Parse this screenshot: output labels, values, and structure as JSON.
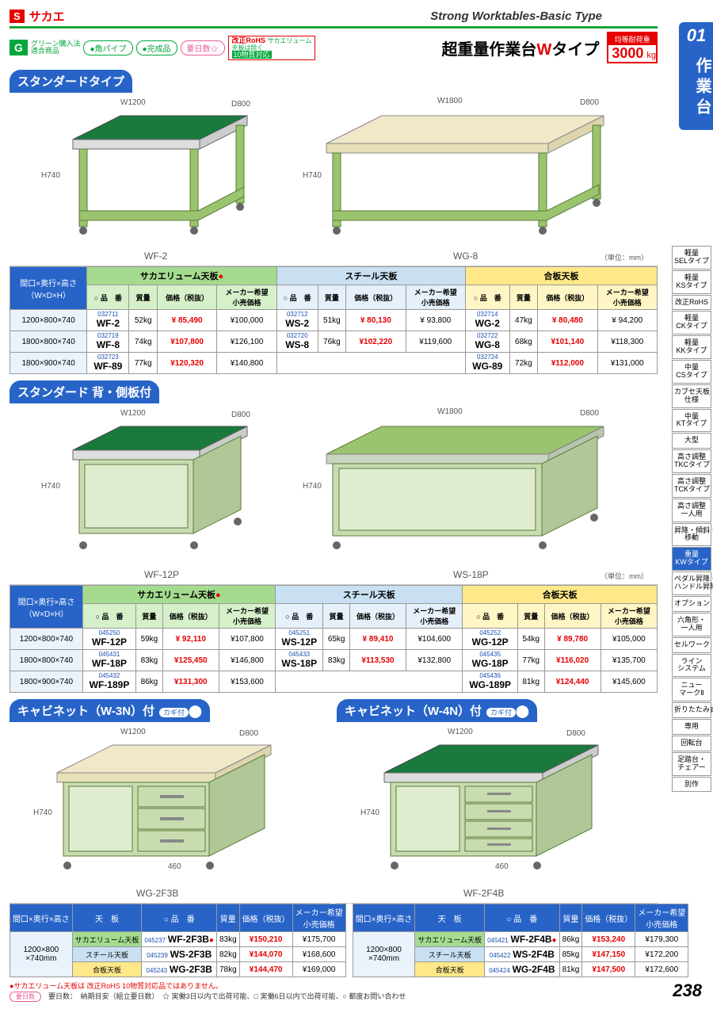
{
  "logo": {
    "s": "S",
    "name": "サカエ"
  },
  "subtitle": "Strong Worktables-Basic Type",
  "badges": {
    "g": "G",
    "g_txt": "グリーン購入法\n適合商品",
    "p1": "角パイプ",
    "p2": "完成品",
    "p3": "要日数",
    "star": "☆"
  },
  "rohs": {
    "main": "改正RoHS",
    "sub": "10物質対応",
    "note": "サカエリューム\n天板は除く"
  },
  "main_title": {
    "a": "超重量作業台",
    "w": "W",
    "b": "タイプ"
  },
  "load": {
    "label": "均等耐荷重",
    "num": "3000",
    "unit": "kg"
  },
  "tab": {
    "num": "01",
    "txt": "作業台"
  },
  "side_list": [
    "軽量\nSELタイプ",
    "軽量\nKSタイプ",
    "改正RoHS",
    "軽量\nCKタイプ",
    "軽量\nKKタイプ",
    "中量\nCSタイプ",
    "カブセ天板\n仕様",
    "中量\nKTタイプ",
    "大型",
    "高さ調整\nTKCタイプ",
    "高さ調整\nTCKタイプ",
    "高さ調整\n一人用",
    "昇降・傾斜・\n移動",
    "重量\nKWタイプ",
    "ペダル昇降・\nハンドル昇降",
    "オプション",
    "六角形・\n一人用",
    "セルワーク",
    "ライン\nシステム",
    "ニュー\nマークⅡ",
    "折りたたみ式",
    "専用",
    "回転台",
    "足踏台・\nチェアー",
    "別作"
  ],
  "side_active_idx": 13,
  "section1": {
    "title": "スタンダードタイプ",
    "imgs": {
      "left": {
        "label": "WF-2",
        "w": "W1200",
        "d": "D800",
        "h": "H740"
      },
      "right": {
        "label": "WG-8",
        "w": "W1800",
        "d": "D800",
        "h": "H740"
      }
    },
    "unit": "（単位：mm）",
    "headers": {
      "dim": "間口×奥行×高さ\n（W×D×H）",
      "g1": "サカエリューム天板",
      "g2": "スチール天板",
      "g3": "合板天板",
      "sub": [
        "○ 品　番",
        "質量",
        "価格（税抜）",
        "メーカー希望\n小売価格"
      ]
    },
    "rows": [
      {
        "dim": "1200×800×740",
        "c1": "032711",
        "m1": "WF-2",
        "w1": "52kg",
        "p1": "¥ 85,490",
        "l1": "¥100,000",
        "c2": "032712",
        "m2": "WS-2",
        "w2": "51kg",
        "p2": "¥ 80,130",
        "l2": "¥ 93,800",
        "c3": "032714",
        "m3": "WG-2",
        "w3": "47kg",
        "p3": "¥ 80,480",
        "l3": "¥ 94,200"
      },
      {
        "dim": "1800×800×740",
        "c1": "032719",
        "m1": "WF-8",
        "w1": "74kg",
        "p1": "¥107,800",
        "l1": "¥126,100",
        "c2": "032720",
        "m2": "WS-8",
        "w2": "76kg",
        "p2": "¥102,220",
        "l2": "¥119,600",
        "c3": "032722",
        "m3": "WG-8",
        "w3": "68kg",
        "p3": "¥101,140",
        "l3": "¥118,300"
      },
      {
        "dim": "1800×900×740",
        "c1": "032723",
        "m1": "WF-89",
        "w1": "77kg",
        "p1": "¥120,320",
        "l1": "¥140,800",
        "c2": "",
        "m2": "",
        "w2": "",
        "p2": "",
        "l2": "",
        "c3": "032724",
        "m3": "WG-89",
        "w3": "72kg",
        "p3": "¥112,000",
        "l3": "¥131,000"
      }
    ]
  },
  "section2": {
    "title": "スタンダード 背・側板付",
    "imgs": {
      "left": {
        "label": "WF-12P",
        "w": "W1200",
        "d": "D800",
        "h": "H740"
      },
      "right": {
        "label": "WS-18P",
        "w": "W1800",
        "d": "D800",
        "h": "H740"
      }
    },
    "unit": "（単位：mm）",
    "rows": [
      {
        "dim": "1200×800×740",
        "c1": "045250",
        "m1": "WF-12P",
        "w1": "59kg",
        "p1": "¥ 92,110",
        "l1": "¥107,800",
        "c2": "045251",
        "m2": "WS-12P",
        "w2": "65kg",
        "p2": "¥ 89,410",
        "l2": "¥104,600",
        "c3": "045252",
        "m3": "WG-12P",
        "w3": "54kg",
        "p3": "¥ 89,780",
        "l3": "¥105,000"
      },
      {
        "dim": "1800×800×740",
        "c1": "045431",
        "m1": "WF-18P",
        "w1": "83kg",
        "p1": "¥125,450",
        "l1": "¥146,800",
        "c2": "045433",
        "m2": "WS-18P",
        "w2": "83kg",
        "p2": "¥113,530",
        "l2": "¥132,800",
        "c3": "045435",
        "m3": "WG-18P",
        "w3": "77kg",
        "p3": "¥116,020",
        "l3": "¥135,700"
      },
      {
        "dim": "1800×900×740",
        "c1": "045432",
        "m1": "WF-189P",
        "w1": "86kg",
        "p1": "¥131,300",
        "l1": "¥153,600",
        "c2": "",
        "m2": "",
        "w2": "",
        "p2": "",
        "l2": "",
        "c3": "045436",
        "m3": "WG-189P",
        "w3": "81kg",
        "p3": "¥124,440",
        "l3": "¥145,600"
      }
    ]
  },
  "section3": {
    "left": {
      "title": "キャビネット（W-3N）付",
      "kagi": "カギ付",
      "img": {
        "label": "WG-2F3B",
        "w": "W1200",
        "d": "D800",
        "h": "H740",
        "drawer_w": "460"
      }
    },
    "right": {
      "title": "キャビネット（W-4N）付",
      "kagi": "カギ付",
      "img": {
        "label": "WF-2F4B",
        "w": "W1200",
        "d": "D800",
        "h": "H740",
        "drawer_w": "460"
      }
    },
    "headers": {
      "dim": "間口×奥行×高さ",
      "tenban": "天　板",
      "sub": [
        "○ 品　番",
        "質量",
        "価格（税抜）",
        "メーカー希望\n小売価格"
      ]
    },
    "dim_val": "1200×800\n×740mm",
    "tbl_left": [
      {
        "tb": "サカエリューム天板",
        "cls": "tb-g1",
        "c": "045237",
        "m": "WF-2F3B",
        "star": "●",
        "w": "83kg",
        "p": "¥150,210",
        "l": "¥175,700"
      },
      {
        "tb": "スチール天板",
        "cls": "tb-g2",
        "c": "045239",
        "m": "WS-2F3B",
        "star": "",
        "w": "82kg",
        "p": "¥144,070",
        "l": "¥168,600"
      },
      {
        "tb": "合板天板",
        "cls": "tb-g3",
        "c": "045243",
        "m": "WG-2F3B",
        "star": "",
        "w": "78kg",
        "p": "¥144,470",
        "l": "¥169,000"
      }
    ],
    "tbl_right": [
      {
        "tb": "サカエリューム天板",
        "cls": "tb-g1",
        "c": "045421",
        "m": "WF-2F4B",
        "star": "●",
        "w": "86kg",
        "p": "¥153,240",
        "l": "¥179,300"
      },
      {
        "tb": "スチール天板",
        "cls": "tb-g2",
        "c": "045422",
        "m": "WS-2F4B",
        "star": "",
        "w": "85kg",
        "p": "¥147,150",
        "l": "¥172,200"
      },
      {
        "tb": "合板天板",
        "cls": "tb-g3",
        "c": "045424",
        "m": "WG-2F4B",
        "star": "",
        "w": "81kg",
        "p": "¥147,500",
        "l": "¥172,600"
      }
    ]
  },
  "footnotes": {
    "f1": "●サカエリューム天板は 改正RoHS 10物質対応品ではありません。",
    "f2": "要日数：　納期目安（組立要日数）　☆ 実働3日以内で出荷可能、□ 実働6日以内で出荷可能、○ 都度お問い合わせ"
  },
  "page_num": "238",
  "top_colors": {
    "green": "#1a7a3e",
    "beige": "#f0e8c8",
    "steel": "#c8d4c0"
  }
}
